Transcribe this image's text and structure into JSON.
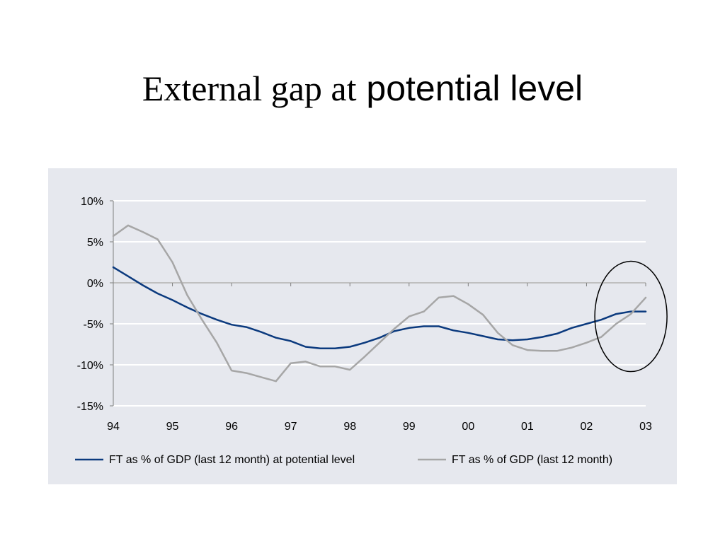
{
  "slide": {
    "title_part1": "External gap at",
    "title_part2": "potential level"
  },
  "chart_data": {
    "type": "line",
    "title": "External gap at potential level",
    "xlabel": "",
    "ylabel": "",
    "x_tick_labels": [
      "94",
      "95",
      "96",
      "97",
      "98",
      "99",
      "00",
      "01",
      "02",
      "03"
    ],
    "x_range": [
      0,
      9
    ],
    "y_ticks": [
      10,
      5,
      0,
      -5,
      -10,
      -15
    ],
    "y_tick_labels": [
      "10%",
      "5%",
      "0%",
      "-5%",
      "-10%",
      "-15%"
    ],
    "ylim": [
      -15,
      10
    ],
    "grid": "horizontal",
    "legend_position": "bottom",
    "annotation": "ellipse highlighting 02-03",
    "series": [
      {
        "name": "FT as % of GDP (last 12 month) at potential level",
        "color": "#0b3a7e",
        "points": [
          [
            0.0,
            1.9
          ],
          [
            0.25,
            0.8
          ],
          [
            0.5,
            -0.3
          ],
          [
            0.75,
            -1.3
          ],
          [
            1.0,
            -2.1
          ],
          [
            1.25,
            -3.0
          ],
          [
            1.5,
            -3.8
          ],
          [
            1.75,
            -4.5
          ],
          [
            2.0,
            -5.1
          ],
          [
            2.25,
            -5.4
          ],
          [
            2.5,
            -6.0
          ],
          [
            2.75,
            -6.7
          ],
          [
            3.0,
            -7.1
          ],
          [
            3.25,
            -7.8
          ],
          [
            3.5,
            -8.0
          ],
          [
            3.75,
            -8.0
          ],
          [
            4.0,
            -7.8
          ],
          [
            4.25,
            -7.3
          ],
          [
            4.5,
            -6.7
          ],
          [
            4.75,
            -5.9
          ],
          [
            5.0,
            -5.5
          ],
          [
            5.25,
            -5.3
          ],
          [
            5.5,
            -5.3
          ],
          [
            5.75,
            -5.8
          ],
          [
            6.0,
            -6.1
          ],
          [
            6.25,
            -6.5
          ],
          [
            6.5,
            -6.9
          ],
          [
            6.75,
            -7.0
          ],
          [
            7.0,
            -6.9
          ],
          [
            7.25,
            -6.6
          ],
          [
            7.5,
            -6.2
          ],
          [
            7.75,
            -5.5
          ],
          [
            8.0,
            -5.0
          ],
          [
            8.25,
            -4.5
          ],
          [
            8.5,
            -3.8
          ],
          [
            8.75,
            -3.5
          ],
          [
            9.0,
            -3.5
          ]
        ]
      },
      {
        "name": "FT as % of GDP (last 12 month)",
        "color": "#a6a6a6",
        "points": [
          [
            0.0,
            5.7
          ],
          [
            0.25,
            7.0
          ],
          [
            0.5,
            6.2
          ],
          [
            0.75,
            5.3
          ],
          [
            1.0,
            2.5
          ],
          [
            1.25,
            -1.5
          ],
          [
            1.5,
            -4.5
          ],
          [
            1.75,
            -7.3
          ],
          [
            2.0,
            -10.7
          ],
          [
            2.25,
            -11.0
          ],
          [
            2.5,
            -11.5
          ],
          [
            2.75,
            -12.0
          ],
          [
            3.0,
            -9.8
          ],
          [
            3.25,
            -9.6
          ],
          [
            3.5,
            -10.2
          ],
          [
            3.75,
            -10.2
          ],
          [
            4.0,
            -10.6
          ],
          [
            4.25,
            -9.0
          ],
          [
            4.5,
            -7.3
          ],
          [
            4.75,
            -5.6
          ],
          [
            5.0,
            -4.1
          ],
          [
            5.25,
            -3.5
          ],
          [
            5.5,
            -1.8
          ],
          [
            5.75,
            -1.6
          ],
          [
            6.0,
            -2.6
          ],
          [
            6.25,
            -3.9
          ],
          [
            6.5,
            -6.1
          ],
          [
            6.75,
            -7.6
          ],
          [
            7.0,
            -8.2
          ],
          [
            7.25,
            -8.3
          ],
          [
            7.5,
            -8.3
          ],
          [
            7.75,
            -7.9
          ],
          [
            8.0,
            -7.3
          ],
          [
            8.25,
            -6.6
          ],
          [
            8.5,
            -5.0
          ],
          [
            8.75,
            -3.8
          ],
          [
            9.0,
            -1.8
          ]
        ]
      }
    ]
  }
}
